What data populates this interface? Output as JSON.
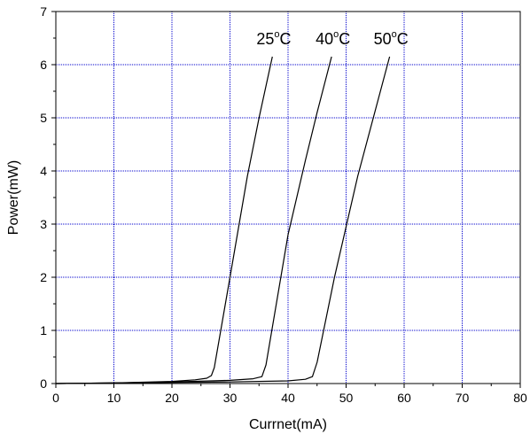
{
  "chart_data": {
    "type": "line",
    "title": "",
    "xlabel": "Currnet(mA)",
    "ylabel": "Power(mW)",
    "xlim": [
      0,
      80
    ],
    "ylim": [
      0,
      7
    ],
    "xticks": [
      0,
      10,
      20,
      30,
      40,
      50,
      60,
      70,
      80
    ],
    "yticks": [
      0,
      1,
      2,
      3,
      4,
      5,
      6,
      7
    ],
    "grid": true,
    "grid_color": "#0000cc",
    "line_color": "#000000",
    "series": [
      {
        "name": "25°C",
        "label_main": "25",
        "label_sup": "o",
        "label_unit": "C",
        "x": [
          0,
          10,
          20,
          24,
          26,
          26.8,
          27.3,
          30,
          33,
          35,
          37.3
        ],
        "y": [
          0,
          0.01,
          0.04,
          0.07,
          0.1,
          0.15,
          0.3,
          2.0,
          3.9,
          5.0,
          6.15
        ]
      },
      {
        "name": "40°C",
        "label_main": "40",
        "label_sup": "o",
        "label_unit": "C",
        "x": [
          0,
          10,
          20,
          30,
          34,
          35.5,
          36.2,
          40,
          43,
          45,
          47.5
        ],
        "y": [
          0,
          0.01,
          0.03,
          0.06,
          0.09,
          0.13,
          0.35,
          2.8,
          4.2,
          5.1,
          6.15
        ]
      },
      {
        "name": "50°C",
        "label_main": "50",
        "label_sup": "o",
        "label_unit": "C",
        "x": [
          0,
          10,
          20,
          30,
          40,
          43,
          44.2,
          45,
          48,
          52,
          57.5
        ],
        "y": [
          0,
          0.01,
          0.02,
          0.03,
          0.05,
          0.08,
          0.13,
          0.4,
          2.0,
          3.9,
          6.15
        ]
      }
    ]
  }
}
